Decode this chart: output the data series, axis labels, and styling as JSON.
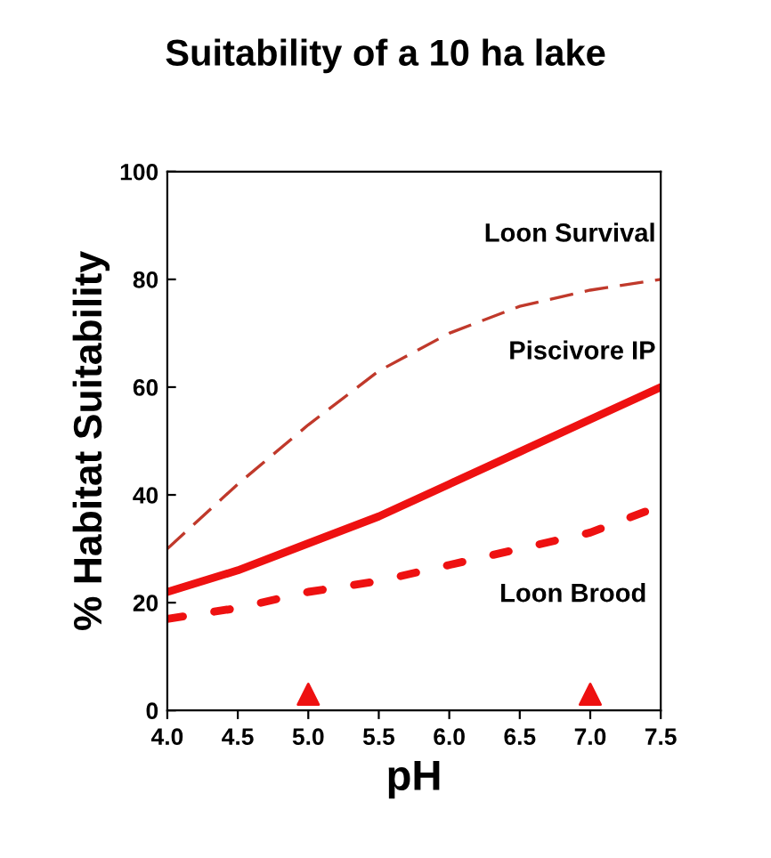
{
  "chart_data": {
    "type": "line",
    "title": "Suitability of a 10 ha lake",
    "xlabel": "pH",
    "ylabel": "% Habitat Suitability",
    "xlim": [
      4.0,
      7.5
    ],
    "xticks": [
      {
        "value": 4.0,
        "label": "4.0"
      },
      {
        "value": 4.5,
        "label": "4.5"
      },
      {
        "value": 5.0,
        "label": "5.0"
      },
      {
        "value": 5.5,
        "label": "5.5"
      },
      {
        "value": 6.0,
        "label": "6.0"
      },
      {
        "value": 6.5,
        "label": "6.5"
      },
      {
        "value": 7.0,
        "label": "7.0"
      },
      {
        "value": 7.5,
        "label": "7.5"
      }
    ],
    "ylim": [
      0,
      100
    ],
    "yticks": [
      0,
      20,
      40,
      60,
      80,
      100
    ],
    "grid": false,
    "legend": false,
    "series": [
      {
        "name": "Loon Survival",
        "color": "#c0392b",
        "line_style": "dashed",
        "x": [
          4.0,
          4.5,
          5.0,
          5.5,
          6.0,
          6.5,
          7.0,
          7.5
        ],
        "values": [
          30,
          42,
          53,
          63,
          70,
          75,
          78,
          80
        ]
      },
      {
        "name": "Piscivore IP",
        "color": "#ee1111",
        "line_style": "solid",
        "x": [
          4.0,
          4.5,
          5.0,
          5.5,
          6.0,
          6.5,
          7.0,
          7.5
        ],
        "values": [
          22,
          26,
          31,
          36,
          42,
          48,
          54,
          60
        ]
      },
      {
        "name": "Loon Brood",
        "color": "#ee1111",
        "line_style": "dotted",
        "x": [
          4.0,
          4.5,
          5.0,
          5.5,
          6.0,
          6.5,
          7.0,
          7.4
        ],
        "values": [
          17,
          19,
          22,
          24,
          27,
          30,
          33,
          37
        ]
      },
      {
        "type": "scatter",
        "marker": "triangle",
        "color": "#ee1111",
        "x": [
          5.0,
          7.0
        ],
        "values": [
          3,
          3
        ]
      }
    ]
  }
}
